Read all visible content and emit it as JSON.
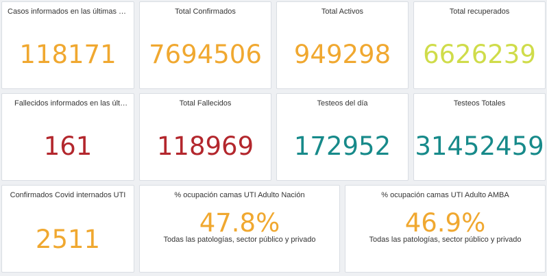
{
  "colors": {
    "orange": "#f0a830",
    "lime": "#cfdc4a",
    "red": "#b3272d",
    "teal": "#178a8a"
  },
  "cards": [
    {
      "title": "Casos informados en las últimas 2…",
      "value": "118171",
      "color": "#f0a830"
    },
    {
      "title": "Total Confirmados",
      "value": "7694506",
      "color": "#f0a830"
    },
    {
      "title": "Total Activos",
      "value": "949298",
      "color": "#f0a830"
    },
    {
      "title": "Total recuperados",
      "value": "6626239",
      "color": "#cfdc4a"
    },
    {
      "title": "Fallecidos informados en las últim…",
      "value": "161",
      "color": "#b3272d"
    },
    {
      "title": "Total Fallecidos",
      "value": "118969",
      "color": "#b3272d"
    },
    {
      "title": "Testeos del día",
      "value": "172952",
      "color": "#178a8a"
    },
    {
      "title": "Testeos Totales",
      "value": "31452459",
      "color": "#178a8a"
    },
    {
      "title": "Confirmados Covid internados UTI",
      "value": "2511",
      "color": "#f0a830"
    },
    {
      "title": "% ocupación camas UTI Adulto Nación",
      "value": "47.8%",
      "color": "#f0a830",
      "subtitle": "Todas las patologías, sector público y privado"
    },
    {
      "title": "% ocupación camas UTI Adulto AMBA",
      "value": "46.9%",
      "color": "#f0a830",
      "subtitle": "Todas las patologías, sector público y privado"
    }
  ]
}
